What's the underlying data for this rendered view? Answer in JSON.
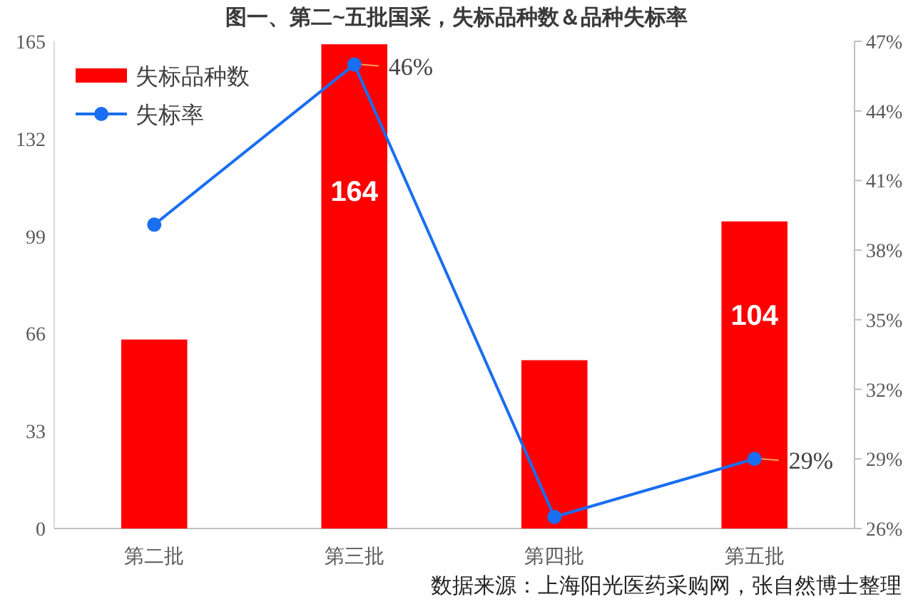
{
  "chart_data": {
    "type": "bar",
    "title": "图一、第二~五批国采，失标品种数＆品种失标率",
    "categories": [
      "第二批",
      "第三批",
      "第四批",
      "第五批"
    ],
    "series": [
      {
        "name": "失标品种数",
        "color": "#ff0000",
        "values": [
          64,
          164,
          57,
          104
        ],
        "value_labels": [
          null,
          "164",
          null,
          "104"
        ]
      },
      {
        "name": "失标率",
        "type": "line",
        "axis": "y2",
        "color": "#1a6ef0",
        "marker": "circle",
        "values": [
          39.1,
          46,
          26.5,
          29
        ],
        "value_labels": [
          null,
          "46%",
          null,
          "29%"
        ]
      }
    ],
    "ylim": [
      0,
      165
    ],
    "yticks": [
      0,
      33,
      66,
      99,
      132,
      165
    ],
    "y2lim": [
      26,
      47
    ],
    "y2ticks": [
      {
        "value": 26,
        "label": "26%"
      },
      {
        "value": 29,
        "label": "29%"
      },
      {
        "value": 32,
        "label": "32%"
      },
      {
        "value": 35,
        "label": "35%"
      },
      {
        "value": 38,
        "label": "38%"
      },
      {
        "value": 41,
        "label": "41%"
      },
      {
        "value": 44,
        "label": "44%"
      },
      {
        "value": 47,
        "label": "47%"
      }
    ],
    "grid": false,
    "legend": "top left",
    "annotations": [
      "数据来源：上海阳光医药采购网，张自然博士整理"
    ]
  }
}
